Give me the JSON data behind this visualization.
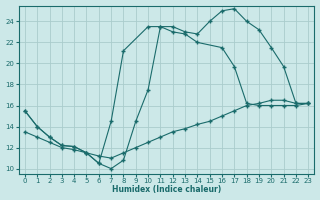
{
  "xlabel": "Humidex (Indice chaleur)",
  "bg_color": "#cce8e8",
  "line_color": "#1a6b6b",
  "grid_color": "#aacccc",
  "xlim": [
    -0.5,
    23.5
  ],
  "ylim": [
    9.5,
    25.5
  ],
  "xticks": [
    0,
    1,
    2,
    3,
    4,
    5,
    6,
    7,
    8,
    9,
    10,
    11,
    12,
    13,
    14,
    15,
    16,
    17,
    18,
    19,
    20,
    21,
    22,
    23
  ],
  "yticks": [
    10,
    12,
    14,
    16,
    18,
    20,
    22,
    24
  ],
  "line1_x": [
    0,
    1,
    2,
    3,
    4,
    5,
    6,
    7,
    8,
    9,
    10,
    11,
    12,
    13,
    14,
    15,
    16,
    17,
    18,
    19,
    20,
    21,
    22,
    23
  ],
  "line1_y": [
    15.5,
    14.0,
    13.0,
    12.2,
    12.1,
    11.5,
    10.5,
    10.0,
    10.8,
    14.5,
    17.5,
    23.5,
    23.5,
    23.0,
    22.8,
    24.0,
    25.0,
    25.2,
    24.0,
    23.2,
    21.5,
    19.7,
    16.2,
    16.2
  ],
  "line2_x": [
    0,
    1,
    2,
    3,
    4,
    5,
    6,
    7,
    8,
    10,
    11,
    12,
    13,
    14,
    16,
    17,
    18,
    19,
    20,
    21,
    22,
    23
  ],
  "line2_y": [
    15.5,
    14.0,
    13.0,
    12.2,
    12.1,
    11.5,
    10.5,
    14.5,
    21.2,
    23.5,
    23.5,
    23.0,
    22.8,
    22.0,
    21.5,
    19.7,
    16.2,
    16.0,
    16.0,
    16.0,
    16.0,
    16.2
  ],
  "line3_x": [
    0,
    1,
    2,
    3,
    4,
    5,
    6,
    7,
    8,
    9,
    10,
    11,
    12,
    13,
    14,
    15,
    16,
    17,
    18,
    19,
    20,
    21,
    22,
    23
  ],
  "line3_y": [
    13.5,
    13.0,
    12.5,
    12.0,
    11.8,
    11.5,
    11.2,
    11.0,
    11.5,
    12.0,
    12.5,
    13.0,
    13.5,
    13.8,
    14.2,
    14.5,
    15.0,
    15.5,
    16.0,
    16.2,
    16.5,
    16.5,
    16.2,
    16.2
  ]
}
